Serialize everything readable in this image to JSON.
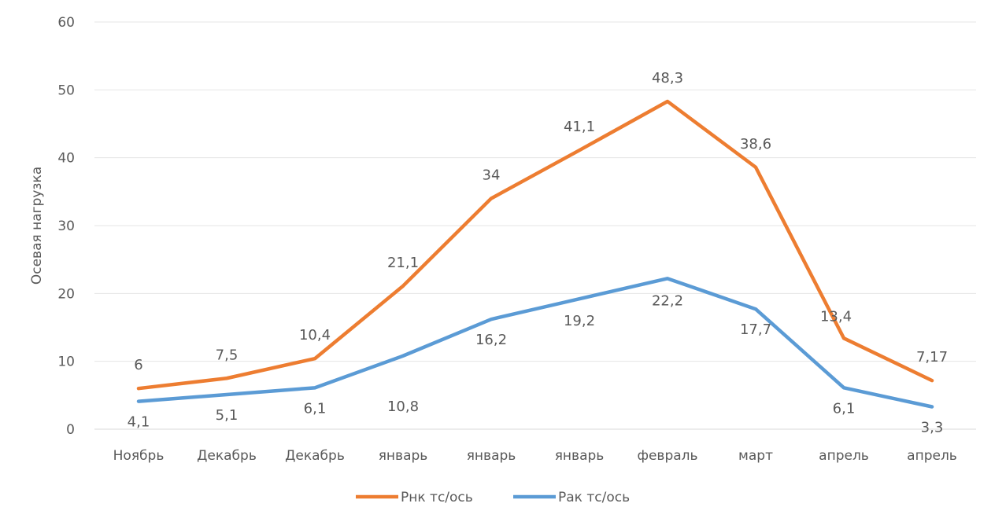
{
  "chart_data": {
    "type": "line",
    "title": "",
    "xlabel": "",
    "ylabel": "Осевая нагрузка",
    "ylim": [
      0,
      60
    ],
    "yticks": [
      "0",
      "10",
      "20",
      "30",
      "40",
      "50",
      "60"
    ],
    "grid": true,
    "legend_position": "bottom",
    "categories": [
      "Ноябрь",
      "Декабрь",
      "Декабрь",
      "январь",
      "январь",
      "январь",
      "февраль",
      "март",
      "апрель",
      "апрель"
    ],
    "series": [
      {
        "name": "Рнк тс/ось",
        "color": "#ED7D31",
        "values": [
          6,
          7.5,
          10.4,
          21.1,
          34,
          41.1,
          48.3,
          38.6,
          13.4,
          7.17
        ],
        "labels": [
          "6",
          "7,5",
          "10,4",
          "21,1",
          "34",
          "41,1",
          "48,3",
          "38,6",
          "13,4",
          "7,17"
        ]
      },
      {
        "name": "Рак тс/ось",
        "color": "#5B9BD5",
        "values": [
          4.1,
          5.1,
          6.1,
          10.8,
          16.2,
          19.2,
          22.2,
          17.7,
          6.1,
          3.3
        ],
        "labels": [
          "4,1",
          "5,1",
          "6,1",
          "10,8",
          "16,2",
          "19,2",
          "22,2",
          "17,7",
          "6,1",
          "3,3"
        ]
      }
    ]
  }
}
